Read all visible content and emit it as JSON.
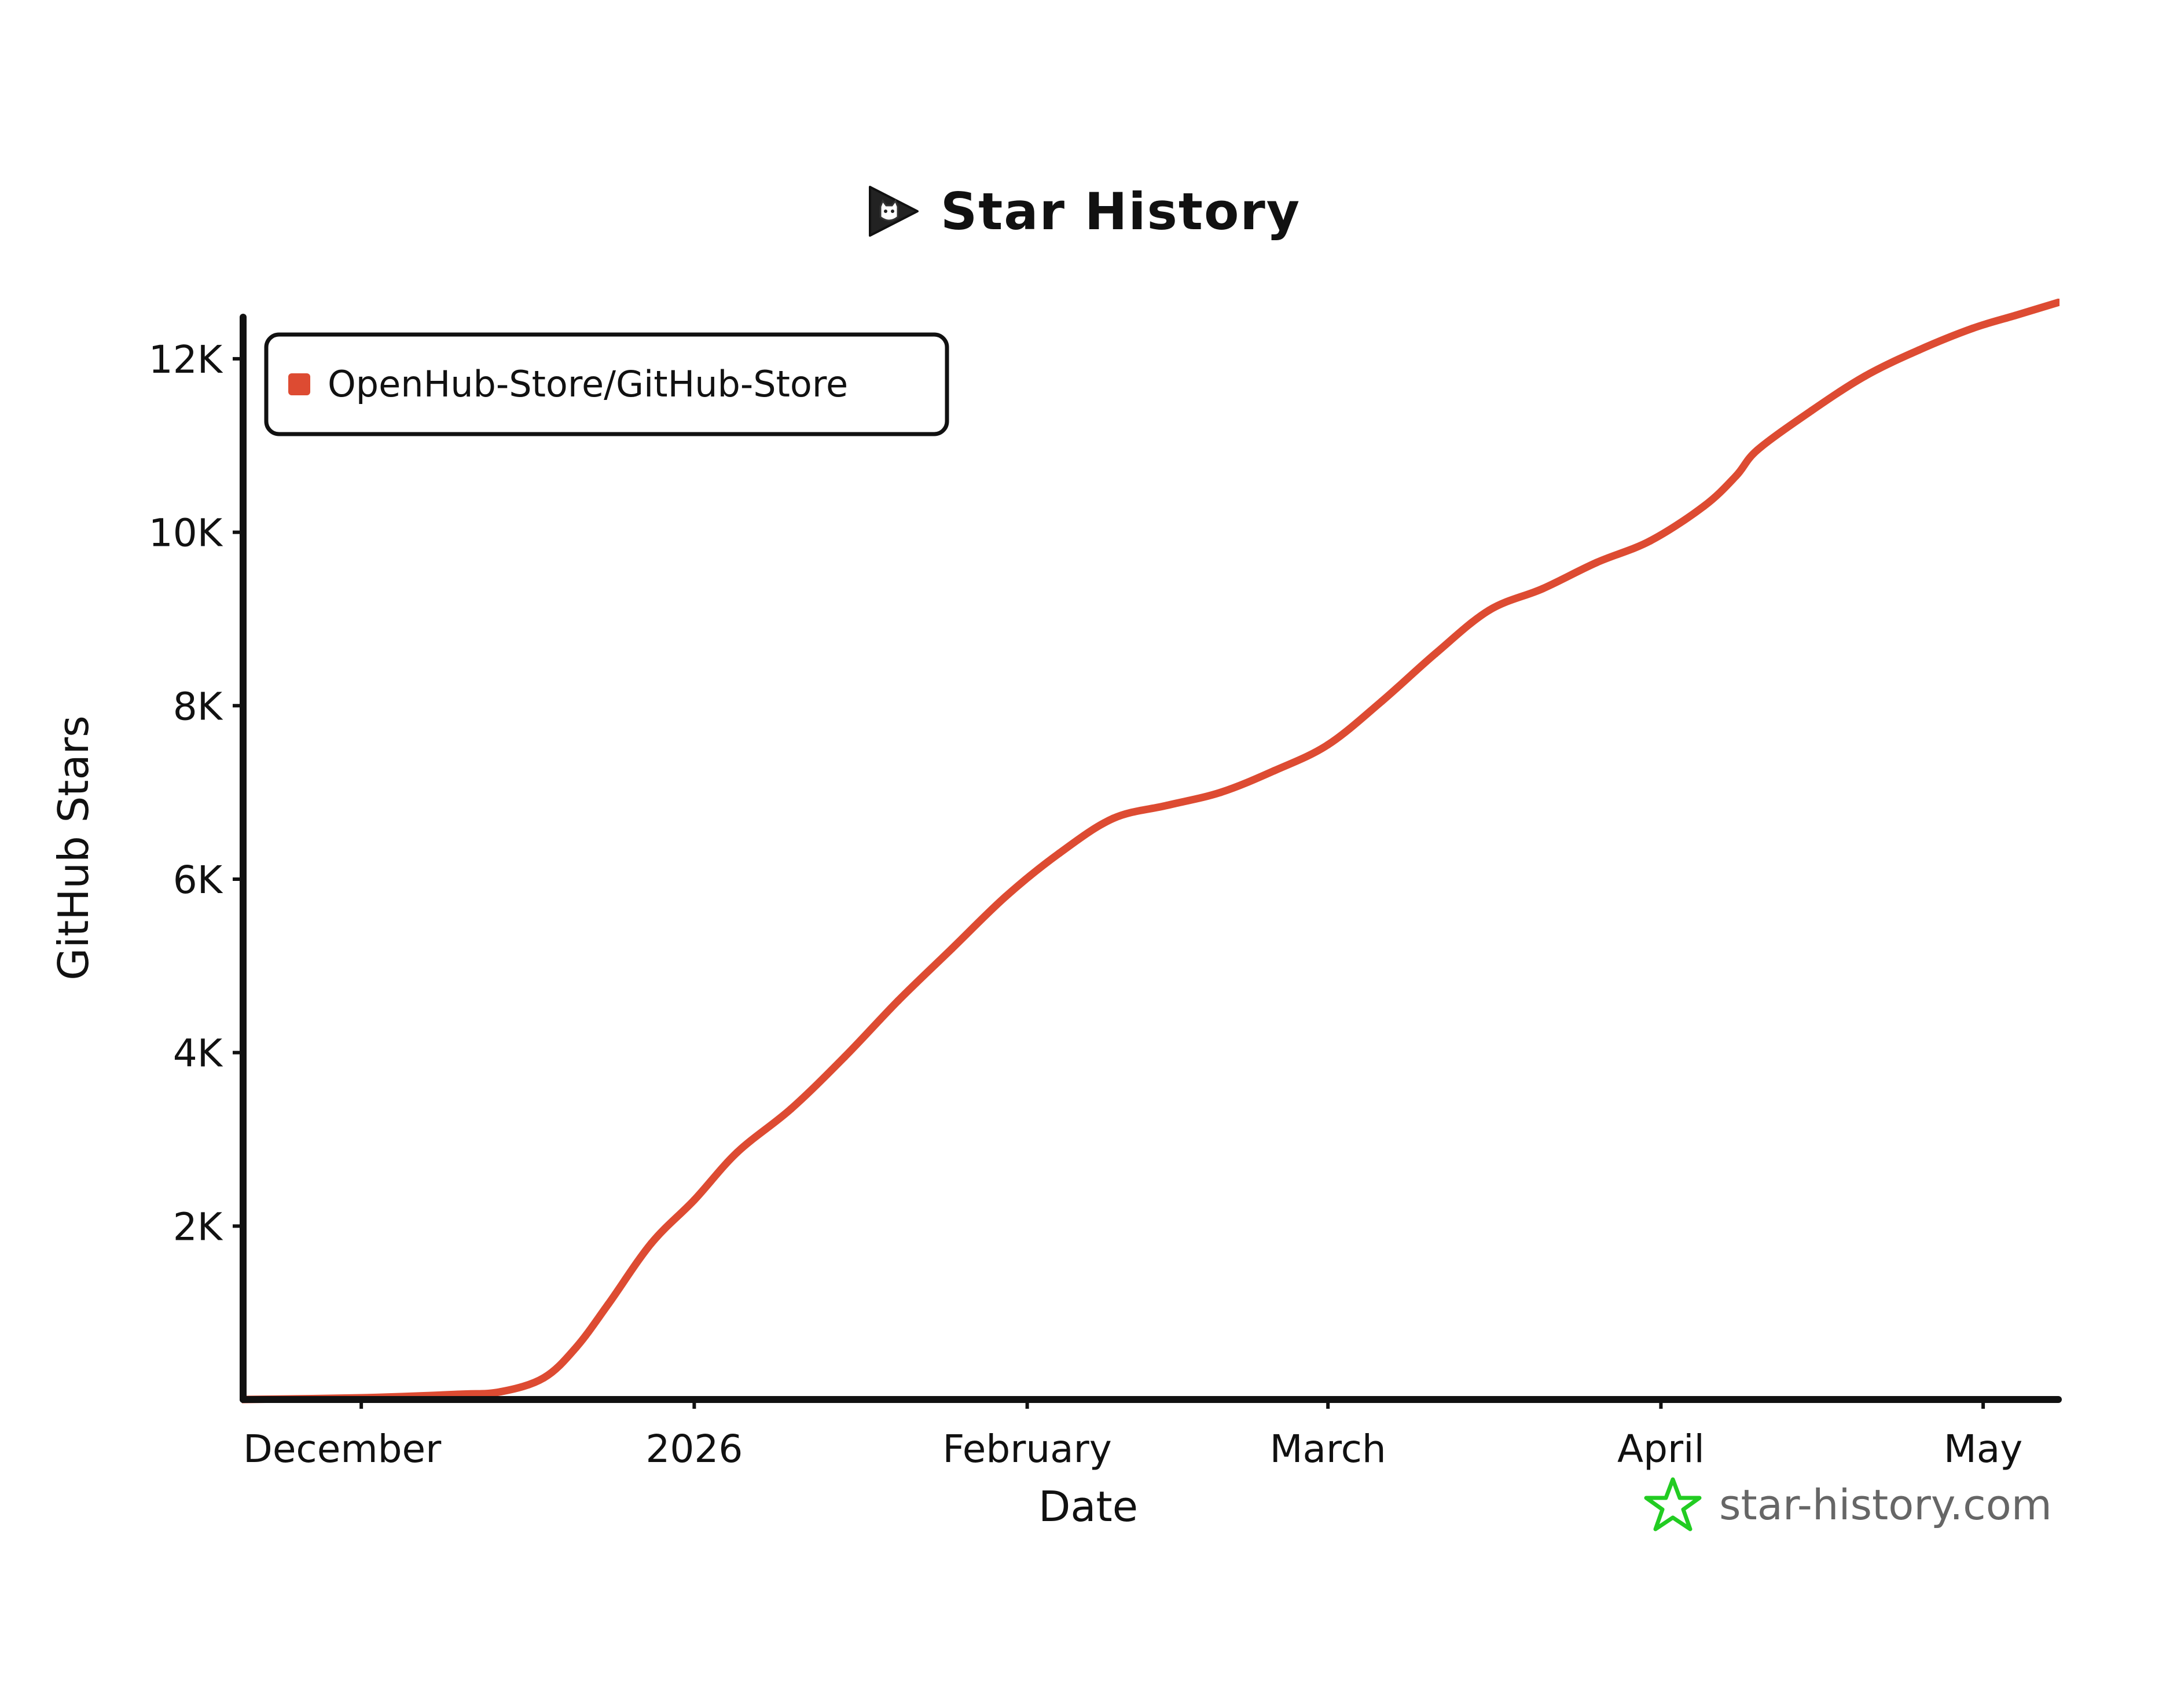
{
  "header": {
    "title": "Star History",
    "logo_icon": "play-cat-icon"
  },
  "watermark": {
    "text": "star-history.com",
    "icon": "star-icon",
    "icon_color": "#22cc22"
  },
  "colors": {
    "series": "#dd4b32",
    "axis": "#111111"
  },
  "chart_data": {
    "type": "line",
    "title": "Star History",
    "xlabel": "Date",
    "ylabel": "GitHub Stars",
    "x_type": "date",
    "xlim": [
      "2025-11-20",
      "2026-05-08"
    ],
    "ylim": [
      0,
      12800
    ],
    "x_ticks": [
      {
        "date": "2025-12-01",
        "label": "December"
      },
      {
        "date": "2026-01-01",
        "label": "2026"
      },
      {
        "date": "2026-02-01",
        "label": "February"
      },
      {
        "date": "2026-03-01",
        "label": "March"
      },
      {
        "date": "2026-04-01",
        "label": "April"
      },
      {
        "date": "2026-05-01",
        "label": "May"
      }
    ],
    "y_ticks": [
      {
        "value": 2000,
        "label": "2K"
      },
      {
        "value": 4000,
        "label": "4K"
      },
      {
        "value": 6000,
        "label": "6K"
      },
      {
        "value": 8000,
        "label": "8K"
      },
      {
        "value": 10000,
        "label": "10K"
      },
      {
        "value": 12000,
        "label": "12K"
      }
    ],
    "grid": false,
    "legend_position": "top-left",
    "series": [
      {
        "name": "OpenHub-Store/GitHub-Store",
        "color": "#dd4b32",
        "points": [
          {
            "x": "2025-11-20",
            "y": 0
          },
          {
            "x": "2025-12-01",
            "y": 20
          },
          {
            "x": "2025-12-10",
            "y": 60
          },
          {
            "x": "2025-12-14",
            "y": 90
          },
          {
            "x": "2025-12-18",
            "y": 250
          },
          {
            "x": "2025-12-21",
            "y": 600
          },
          {
            "x": "2025-12-24",
            "y": 1100
          },
          {
            "x": "2025-12-28",
            "y": 1800
          },
          {
            "x": "2026-01-01",
            "y": 2300
          },
          {
            "x": "2026-01-05",
            "y": 2850
          },
          {
            "x": "2026-01-10",
            "y": 3350
          },
          {
            "x": "2026-01-15",
            "y": 3950
          },
          {
            "x": "2026-01-20",
            "y": 4600
          },
          {
            "x": "2026-01-25",
            "y": 5200
          },
          {
            "x": "2026-01-30",
            "y": 5800
          },
          {
            "x": "2026-02-04",
            "y": 6300
          },
          {
            "x": "2026-02-09",
            "y": 6700
          },
          {
            "x": "2026-02-14",
            "y": 6850
          },
          {
            "x": "2026-02-19",
            "y": 7000
          },
          {
            "x": "2026-02-24",
            "y": 7250
          },
          {
            "x": "2026-03-01",
            "y": 7550
          },
          {
            "x": "2026-03-06",
            "y": 8050
          },
          {
            "x": "2026-03-11",
            "y": 8600
          },
          {
            "x": "2026-03-16",
            "y": 9100
          },
          {
            "x": "2026-03-21",
            "y": 9350
          },
          {
            "x": "2026-03-26",
            "y": 9650
          },
          {
            "x": "2026-03-31",
            "y": 9900
          },
          {
            "x": "2026-04-05",
            "y": 10300
          },
          {
            "x": "2026-04-08",
            "y": 10650
          },
          {
            "x": "2026-04-10",
            "y": 10950
          },
          {
            "x": "2026-04-15",
            "y": 11400
          },
          {
            "x": "2026-04-20",
            "y": 11800
          },
          {
            "x": "2026-04-25",
            "y": 12100
          },
          {
            "x": "2026-04-30",
            "y": 12350
          },
          {
            "x": "2026-05-04",
            "y": 12500
          },
          {
            "x": "2026-05-08",
            "y": 12650
          }
        ]
      }
    ]
  }
}
